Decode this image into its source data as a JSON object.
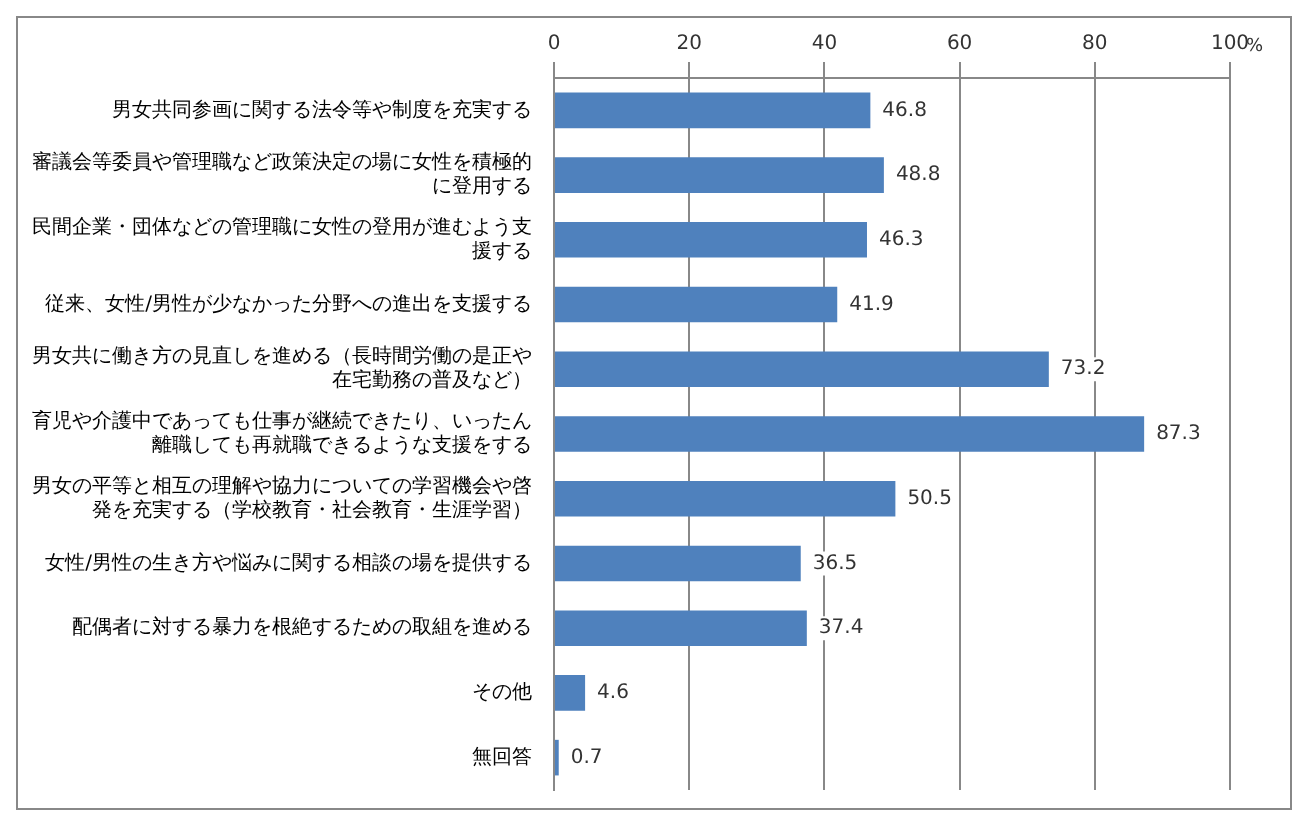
{
  "chart_data": {
    "type": "bar",
    "orientation": "horizontal",
    "xlabel": "%",
    "categories": [
      "男女共同参画に関する法令等や制度を充実する",
      "審議会等委員や管理職など政策決定の場に女性を積極的に登用する",
      "民間企業・団体などの管理職に女性の登用が進むよう支援する",
      "従来、女性/男性が少なかった分野への進出を支援する",
      "男女共に働き方の見直しを進める（長時間労働の是正や在宅勤務の普及など）",
      "育児や介護中であっても仕事が継続できたり、いったん離職しても再就職できるような支援をする",
      "男女の平等と相互の理解や協力についての学習機会や啓発を充実する（学校教育・社会教育・生涯学習）",
      "女性/男性の生き方や悩みに関する相談の場を提供する",
      "配偶者に対する暴力を根絶するための取組を進める",
      "その他",
      "無回答"
    ],
    "values": [
      46.8,
      48.8,
      46.3,
      41.9,
      73.2,
      87.3,
      50.5,
      36.5,
      37.4,
      4.6,
      0.7
    ],
    "color": "#4f81bd",
    "xlim": [
      0,
      100
    ],
    "xticks": [
      0,
      20,
      40,
      60,
      80,
      100
    ],
    "grid": "x",
    "data_labels": true,
    "legend": false
  }
}
